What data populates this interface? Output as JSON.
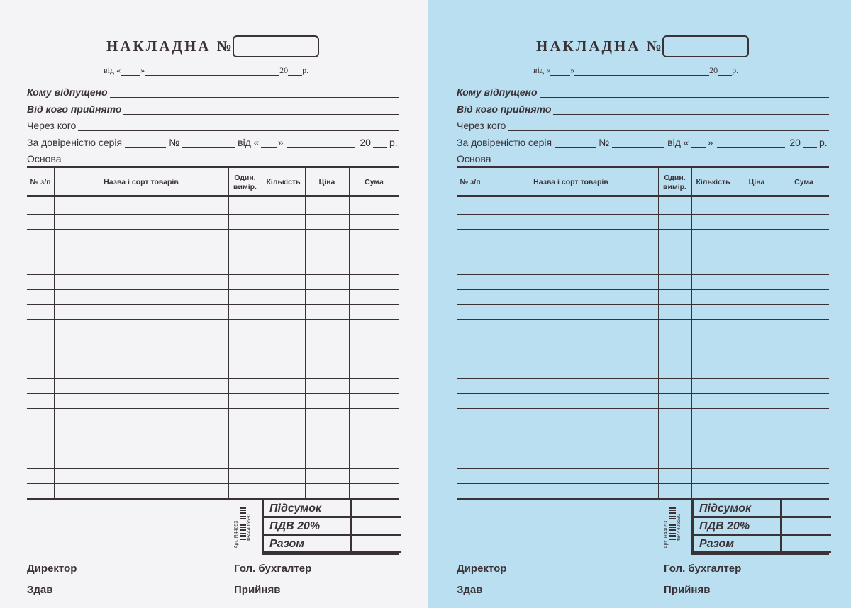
{
  "colors": {
    "white_copy": "#f4f3f5",
    "blue_copy": "#b9dff0",
    "ink": "#3a3236"
  },
  "form": {
    "title": "НАКЛАДНА №",
    "date_from": "від «",
    "date_close": "»",
    "date_year": "20",
    "date_r": "р.",
    "to_whom": "Кому відпущено",
    "from_whom": "Від кого прийнято",
    "via_whom": "Через кого",
    "proxy_series": "За довіреністю серія",
    "proxy_no": "№",
    "proxy_from": "від «",
    "proxy_close": "»",
    "proxy_year": "20",
    "proxy_r": "р.",
    "basis": "Основа",
    "columns": [
      "№ з/п",
      "Назва і сорт товарів",
      "Один. вимір.",
      "Кількість",
      "Ціна",
      "Сума"
    ],
    "row_count": 20,
    "subtotal": "Підсумок",
    "vat": "ПДВ 20%",
    "total": "Разом",
    "article": "Арт. R44053",
    "barcode_digits": "4844405530",
    "director": "Директор",
    "chief_accountant": "Гол. бухгалтер",
    "handed": "Здав",
    "received": "Прийняв"
  }
}
